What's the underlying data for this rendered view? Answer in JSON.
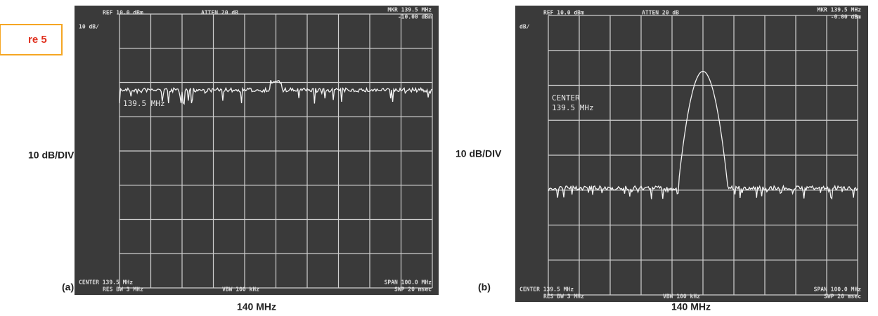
{
  "figure_label": "re 5",
  "panels": [
    {
      "label": "(a)",
      "y_axis_label": "10 dB/DIV",
      "x_axis_label": "140 MHz",
      "screen": {
        "ref": "REF 10.0 dBm",
        "atten": "ATTEN 20 dB",
        "marker_freq": "MKR 139.5 MHz",
        "marker_level": "-10.00 dBm",
        "scale": "10 dB/",
        "marker_note": [
          "139.5 MHz"
        ],
        "center": "CENTER 139.5 MHz",
        "res_bw": "RES BW 3 MHz",
        "vbw": "VBW 100 kHz",
        "span": "SPAN 100.0 MHz",
        "swp": "SWP 20 msec"
      }
    },
    {
      "label": "(b)",
      "y_axis_label": "10 dB/DIV",
      "x_axis_label": "140 MHz",
      "screen": {
        "ref": "REF 10.0 dBm",
        "atten": "ATTEN 20 dB",
        "marker_freq": "MKR 139.5 MHz",
        "marker_level": "-0.00 dBm",
        "scale": "dB/",
        "marker_note": [
          "CENTER",
          "139.5 MHz"
        ],
        "center": "CENTER 139.5 MHz",
        "res_bw": "RES BW 3 MHz",
        "vbw": "VBW 100 kHz",
        "span": "SPAN 100.0 MHz",
        "swp": "SWP 20 msec"
      }
    }
  ]
}
